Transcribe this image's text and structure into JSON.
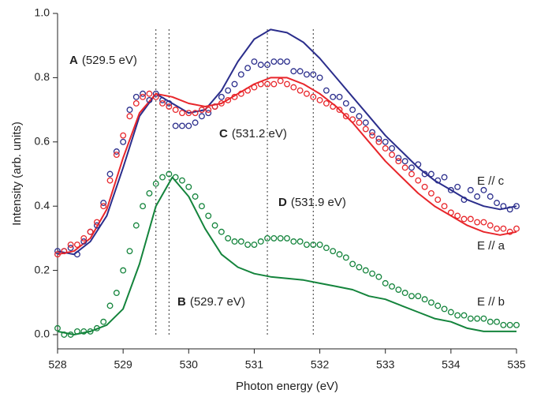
{
  "chart_data": {
    "type": "line",
    "x_label": "Photon energy (eV)",
    "y_label": "Intensity (arb. units)",
    "xlim": [
      528,
      535
    ],
    "ylim": [
      0,
      1
    ],
    "xticks": [
      528,
      529,
      530,
      531,
      532,
      533,
      534,
      535
    ],
    "yticks": [
      {
        "value": 0,
        "label": "0.0"
      },
      0.2,
      0.4,
      0.6,
      {
        "value": 0.8,
        "label": "0.8"
      },
      {
        "value": 1,
        "label": "1.0"
      }
    ],
    "reference_lines": [
      529.5,
      529.7,
      531.2,
      531.9
    ],
    "annotations": [
      {
        "letter": "A",
        "text": "(529.5 eV)"
      },
      {
        "letter": "C",
        "text": "(531.2 eV)"
      },
      {
        "letter": "D",
        "text": "(531.9 eV)"
      },
      {
        "letter": "B",
        "text": "(529.7 eV)"
      }
    ],
    "series": [
      {
        "name": "E // c",
        "style": "line",
        "color": "#2b2e8c",
        "x": [
          528,
          528.25,
          528.5,
          528.75,
          529,
          529.25,
          529.5,
          529.75,
          530,
          530.25,
          530.5,
          530.75,
          531,
          531.25,
          531.5,
          531.75,
          532,
          532.25,
          532.5,
          532.75,
          533,
          533.25,
          533.5,
          533.75,
          534,
          534.25,
          534.5,
          534.75,
          535
        ],
        "values": [
          0.26,
          0.25,
          0.29,
          0.37,
          0.52,
          0.68,
          0.75,
          0.72,
          0.69,
          0.7,
          0.76,
          0.85,
          0.92,
          0.95,
          0.94,
          0.91,
          0.86,
          0.8,
          0.74,
          0.68,
          0.62,
          0.57,
          0.52,
          0.48,
          0.45,
          0.42,
          0.4,
          0.39,
          0.4
        ]
      },
      {
        "name": "E // a",
        "style": "line",
        "color": "#e8262b",
        "x": [
          528,
          528.25,
          528.5,
          528.75,
          529,
          529.25,
          529.5,
          529.75,
          530,
          530.25,
          530.5,
          530.75,
          531,
          531.25,
          531.5,
          531.75,
          532,
          532.25,
          532.5,
          532.75,
          533,
          533.25,
          533.5,
          533.75,
          534,
          534.25,
          534.5,
          534.75,
          535
        ],
        "values": [
          0.25,
          0.26,
          0.3,
          0.39,
          0.55,
          0.69,
          0.75,
          0.74,
          0.72,
          0.71,
          0.72,
          0.75,
          0.78,
          0.8,
          0.8,
          0.78,
          0.75,
          0.71,
          0.66,
          0.6,
          0.54,
          0.49,
          0.44,
          0.4,
          0.37,
          0.34,
          0.32,
          0.31,
          0.32
        ]
      },
      {
        "name": "E // b",
        "style": "line",
        "color": "#14843c",
        "x": [
          528,
          528.25,
          528.5,
          528.75,
          529,
          529.25,
          529.5,
          529.75,
          530,
          530.25,
          530.5,
          530.75,
          531,
          531.25,
          531.5,
          531.75,
          532,
          532.25,
          532.5,
          532.75,
          533,
          533.25,
          533.5,
          533.75,
          534,
          534.25,
          534.5,
          534.75,
          535
        ],
        "values": [
          0.01,
          0,
          0.01,
          0.03,
          0.08,
          0.22,
          0.4,
          0.49,
          0.43,
          0.33,
          0.25,
          0.21,
          0.19,
          0.18,
          0.175,
          0.17,
          0.16,
          0.15,
          0.14,
          0.12,
          0.11,
          0.09,
          0.07,
          0.05,
          0.04,
          0.02,
          0.01,
          0.01,
          0.01
        ]
      },
      {
        "style": "markers",
        "color": "#2b2e8c",
        "x": [
          528,
          528.1,
          528.2,
          528.3,
          528.4,
          528.5,
          528.6,
          528.7,
          528.8,
          528.9,
          529,
          529.1,
          529.2,
          529.3,
          529.4,
          529.5,
          529.6,
          529.7,
          529.8,
          529.9,
          530,
          530.1,
          530.2,
          530.3,
          530.4,
          530.5,
          530.6,
          530.7,
          530.8,
          530.9,
          531,
          531.1,
          531.2,
          531.3,
          531.4,
          531.5,
          531.6,
          531.7,
          531.8,
          531.9,
          532,
          532.1,
          532.2,
          532.3,
          532.4,
          532.5,
          532.6,
          532.7,
          532.8,
          532.9,
          533,
          533.1,
          533.2,
          533.3,
          533.4,
          533.5,
          533.6,
          533.7,
          533.8,
          533.9,
          534,
          534.1,
          534.2,
          534.3,
          534.4,
          534.5,
          534.6,
          534.7,
          534.8,
          534.9,
          535
        ],
        "values": [
          0.26,
          0.26,
          0.27,
          0.25,
          0.29,
          0.32,
          0.34,
          0.41,
          0.5,
          0.57,
          0.6,
          0.7,
          0.74,
          0.75,
          0.73,
          0.75,
          0.73,
          0.72,
          0.65,
          0.65,
          0.65,
          0.66,
          0.68,
          0.69,
          0.71,
          0.74,
          0.76,
          0.78,
          0.81,
          0.83,
          0.85,
          0.84,
          0.84,
          0.85,
          0.85,
          0.85,
          0.82,
          0.82,
          0.81,
          0.81,
          0.8,
          0.76,
          0.74,
          0.74,
          0.72,
          0.7,
          0.68,
          0.66,
          0.63,
          0.61,
          0.6,
          0.58,
          0.55,
          0.54,
          0.52,
          0.53,
          0.5,
          0.5,
          0.48,
          0.49,
          0.45,
          0.46,
          0.42,
          0.45,
          0.43,
          0.45,
          0.43,
          0.41,
          0.4,
          0.39,
          0.4
        ]
      },
      {
        "style": "markers",
        "color": "#e8262b",
        "x": [
          528,
          528.1,
          528.2,
          528.3,
          528.4,
          528.5,
          528.6,
          528.7,
          528.8,
          528.9,
          529,
          529.1,
          529.2,
          529.3,
          529.4,
          529.5,
          529.6,
          529.7,
          529.8,
          529.9,
          530,
          530.1,
          530.2,
          530.3,
          530.4,
          530.5,
          530.6,
          530.7,
          530.8,
          530.9,
          531,
          531.1,
          531.2,
          531.3,
          531.4,
          531.5,
          531.6,
          531.7,
          531.8,
          531.9,
          532,
          532.1,
          532.2,
          532.3,
          532.4,
          532.5,
          532.6,
          532.7,
          532.8,
          532.9,
          533,
          533.1,
          533.2,
          533.3,
          533.4,
          533.5,
          533.6,
          533.7,
          533.8,
          533.9,
          534,
          534.1,
          534.2,
          534.3,
          534.4,
          534.5,
          534.6,
          534.7,
          534.8,
          534.9,
          535
        ],
        "values": [
          0.25,
          0.26,
          0.28,
          0.28,
          0.3,
          0.32,
          0.35,
          0.4,
          0.48,
          0.56,
          0.62,
          0.68,
          0.72,
          0.74,
          0.75,
          0.74,
          0.72,
          0.71,
          0.7,
          0.69,
          0.69,
          0.69,
          0.7,
          0.7,
          0.71,
          0.72,
          0.73,
          0.74,
          0.75,
          0.76,
          0.77,
          0.78,
          0.78,
          0.78,
          0.79,
          0.78,
          0.77,
          0.76,
          0.75,
          0.74,
          0.73,
          0.72,
          0.71,
          0.7,
          0.68,
          0.67,
          0.66,
          0.64,
          0.62,
          0.6,
          0.58,
          0.56,
          0.54,
          0.52,
          0.5,
          0.48,
          0.46,
          0.44,
          0.42,
          0.4,
          0.38,
          0.37,
          0.36,
          0.36,
          0.35,
          0.35,
          0.34,
          0.33,
          0.33,
          0.32,
          0.33
        ]
      },
      {
        "style": "markers",
        "color": "#14843c",
        "x": [
          528,
          528.1,
          528.2,
          528.3,
          528.4,
          528.5,
          528.6,
          528.7,
          528.8,
          528.9,
          529,
          529.1,
          529.2,
          529.3,
          529.4,
          529.5,
          529.6,
          529.7,
          529.8,
          529.9,
          530,
          530.1,
          530.2,
          530.3,
          530.4,
          530.5,
          530.6,
          530.7,
          530.8,
          530.9,
          531,
          531.1,
          531.2,
          531.3,
          531.4,
          531.5,
          531.6,
          531.7,
          531.8,
          531.9,
          532,
          532.1,
          532.2,
          532.3,
          532.4,
          532.5,
          532.6,
          532.7,
          532.8,
          532.9,
          533,
          533.1,
          533.2,
          533.3,
          533.4,
          533.5,
          533.6,
          533.7,
          533.8,
          533.9,
          534,
          534.1,
          534.2,
          534.3,
          534.4,
          534.5,
          534.6,
          534.7,
          534.8,
          534.9,
          535
        ],
        "values": [
          0.02,
          0,
          0,
          0.01,
          0.01,
          0.01,
          0.02,
          0.04,
          0.09,
          0.13,
          0.2,
          0.26,
          0.34,
          0.4,
          0.44,
          0.47,
          0.49,
          0.5,
          0.49,
          0.48,
          0.46,
          0.43,
          0.4,
          0.37,
          0.34,
          0.32,
          0.3,
          0.29,
          0.29,
          0.28,
          0.28,
          0.29,
          0.3,
          0.3,
          0.3,
          0.3,
          0.29,
          0.29,
          0.28,
          0.28,
          0.28,
          0.27,
          0.26,
          0.25,
          0.24,
          0.22,
          0.21,
          0.2,
          0.19,
          0.18,
          0.16,
          0.15,
          0.14,
          0.13,
          0.12,
          0.12,
          0.11,
          0.1,
          0.09,
          0.08,
          0.07,
          0.06,
          0.06,
          0.05,
          0.05,
          0.05,
          0.04,
          0.04,
          0.03,
          0.03,
          0.03
        ]
      }
    ]
  }
}
